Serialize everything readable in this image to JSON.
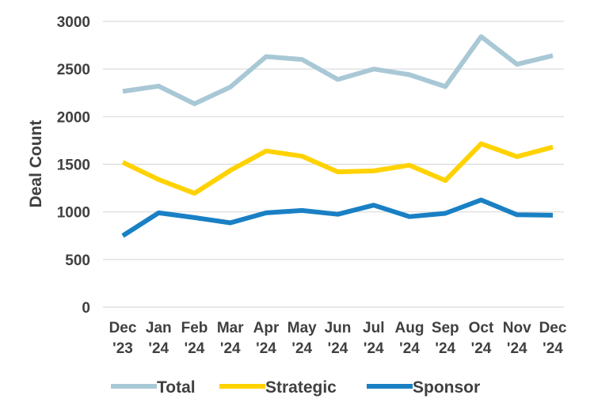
{
  "chart_data": {
    "type": "line",
    "ylabel": "Deal Count",
    "ylim": [
      0,
      3000
    ],
    "yticks": [
      "0",
      "500",
      "1000",
      "1500",
      "2000",
      "2500",
      "3000"
    ],
    "categories": [
      [
        "Dec",
        "'23"
      ],
      [
        "Jan",
        "'24"
      ],
      [
        "Feb",
        "'24"
      ],
      [
        "Mar",
        "'24"
      ],
      [
        "Apr",
        "'24"
      ],
      [
        "May",
        "'24"
      ],
      [
        "Jun",
        "'24"
      ],
      [
        "Jul",
        "'24"
      ],
      [
        "Aug",
        "'24"
      ],
      [
        "Sep",
        "'24"
      ],
      [
        "Oct",
        "'24"
      ],
      [
        "Nov",
        "'24"
      ],
      [
        "Dec",
        "'24"
      ]
    ],
    "grid": true,
    "legend": "bottom",
    "series": [
      {
        "name": "Total",
        "color": "#a9c8d6",
        "values": [
          2265,
          2320,
          2135,
          2310,
          2630,
          2600,
          2390,
          2500,
          2440,
          2315,
          2840,
          2550,
          2640
        ]
      },
      {
        "name": "Strategic",
        "color": "#ffd200",
        "values": [
          1520,
          1340,
          1195,
          1435,
          1640,
          1585,
          1420,
          1430,
          1490,
          1330,
          1715,
          1580,
          1680
        ]
      },
      {
        "name": "Sponsor",
        "color": "#1a80c4",
        "values": [
          750,
          990,
          940,
          885,
          990,
          1015,
          975,
          1070,
          950,
          985,
          1125,
          970,
          965
        ]
      }
    ]
  }
}
